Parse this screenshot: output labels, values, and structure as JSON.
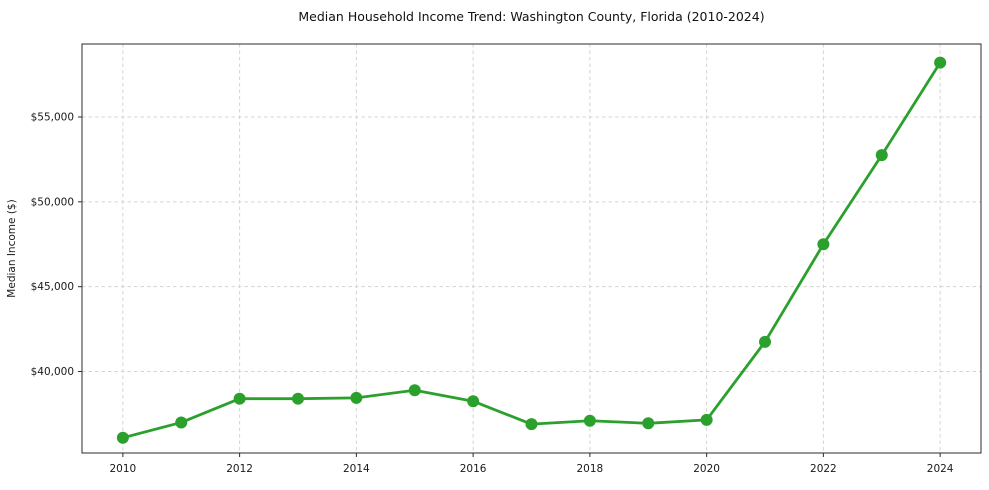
{
  "chart_data": {
    "type": "line",
    "title": "Median Household Income Trend: Washington County, Florida (2010-2024)",
    "xlabel": "",
    "ylabel": "Median Income ($)",
    "x": [
      2010,
      2011,
      2012,
      2013,
      2014,
      2015,
      2016,
      2017,
      2018,
      2019,
      2020,
      2021,
      2022,
      2023,
      2024
    ],
    "values": [
      36100,
      37000,
      38400,
      38400,
      38450,
      38900,
      38250,
      36900,
      37100,
      36950,
      37150,
      41750,
      47500,
      52750,
      58200
    ],
    "xlim": [
      2009.3,
      2024.7
    ],
    "ylim": [
      35200,
      59300
    ],
    "xticks": {
      "values": [
        2010,
        2012,
        2014,
        2016,
        2018,
        2020,
        2022,
        2024
      ],
      "labels": [
        "2010",
        "2012",
        "2014",
        "2016",
        "2018",
        "2020",
        "2022",
        "2024"
      ]
    },
    "yticks": {
      "values": [
        40000,
        45000,
        50000,
        55000
      ],
      "labels": [
        "$40,000",
        "$45,000",
        "$50,000",
        "$55,000"
      ]
    },
    "grid": {
      "visible": true,
      "style": "dashed",
      "color": "#d4d4d4"
    },
    "legend": {
      "visible": false
    },
    "style": {
      "line_color": "#2ca02c",
      "marker": "circle",
      "marker_size": 6,
      "line_width": 2.8,
      "background": "#ffffff",
      "spine_color": "#2b2b2b",
      "tick_color": "#2b2b2b",
      "text_color": "#1a1a1a"
    }
  }
}
